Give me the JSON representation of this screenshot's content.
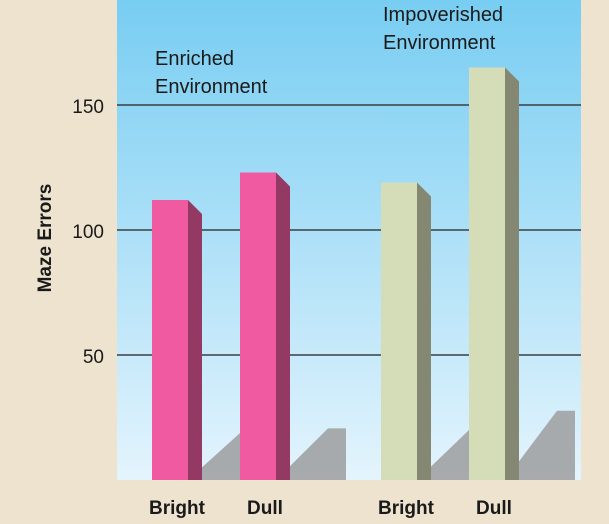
{
  "chart_data": {
    "type": "bar",
    "ylabel": "Maze Errors",
    "ylim": [
      0,
      190
    ],
    "yticks": [
      50,
      100,
      150
    ],
    "grid": true,
    "groups": [
      {
        "name": "Enriched Environment",
        "name_lines": [
          "Enriched",
          "Environment"
        ],
        "color": "#ef5aa1",
        "bars": [
          {
            "category": "Bright",
            "value": 112
          },
          {
            "category": "Dull",
            "value": 123
          }
        ]
      },
      {
        "name": "Impoverished Environment",
        "name_lines": [
          "Impoverished",
          "Environment"
        ],
        "color": "#d5dcb8",
        "bars": [
          {
            "category": "Bright",
            "value": 119
          },
          {
            "category": "Dull",
            "value": 165
          }
        ]
      }
    ]
  },
  "colors": {
    "background": "#ede3cf",
    "plot_top": "#78cdf2",
    "plot_bottom": "#e4f4fd",
    "gridline": "#3a3f44",
    "shadow": "#a1a2a4",
    "text": "#1a1a1a"
  }
}
